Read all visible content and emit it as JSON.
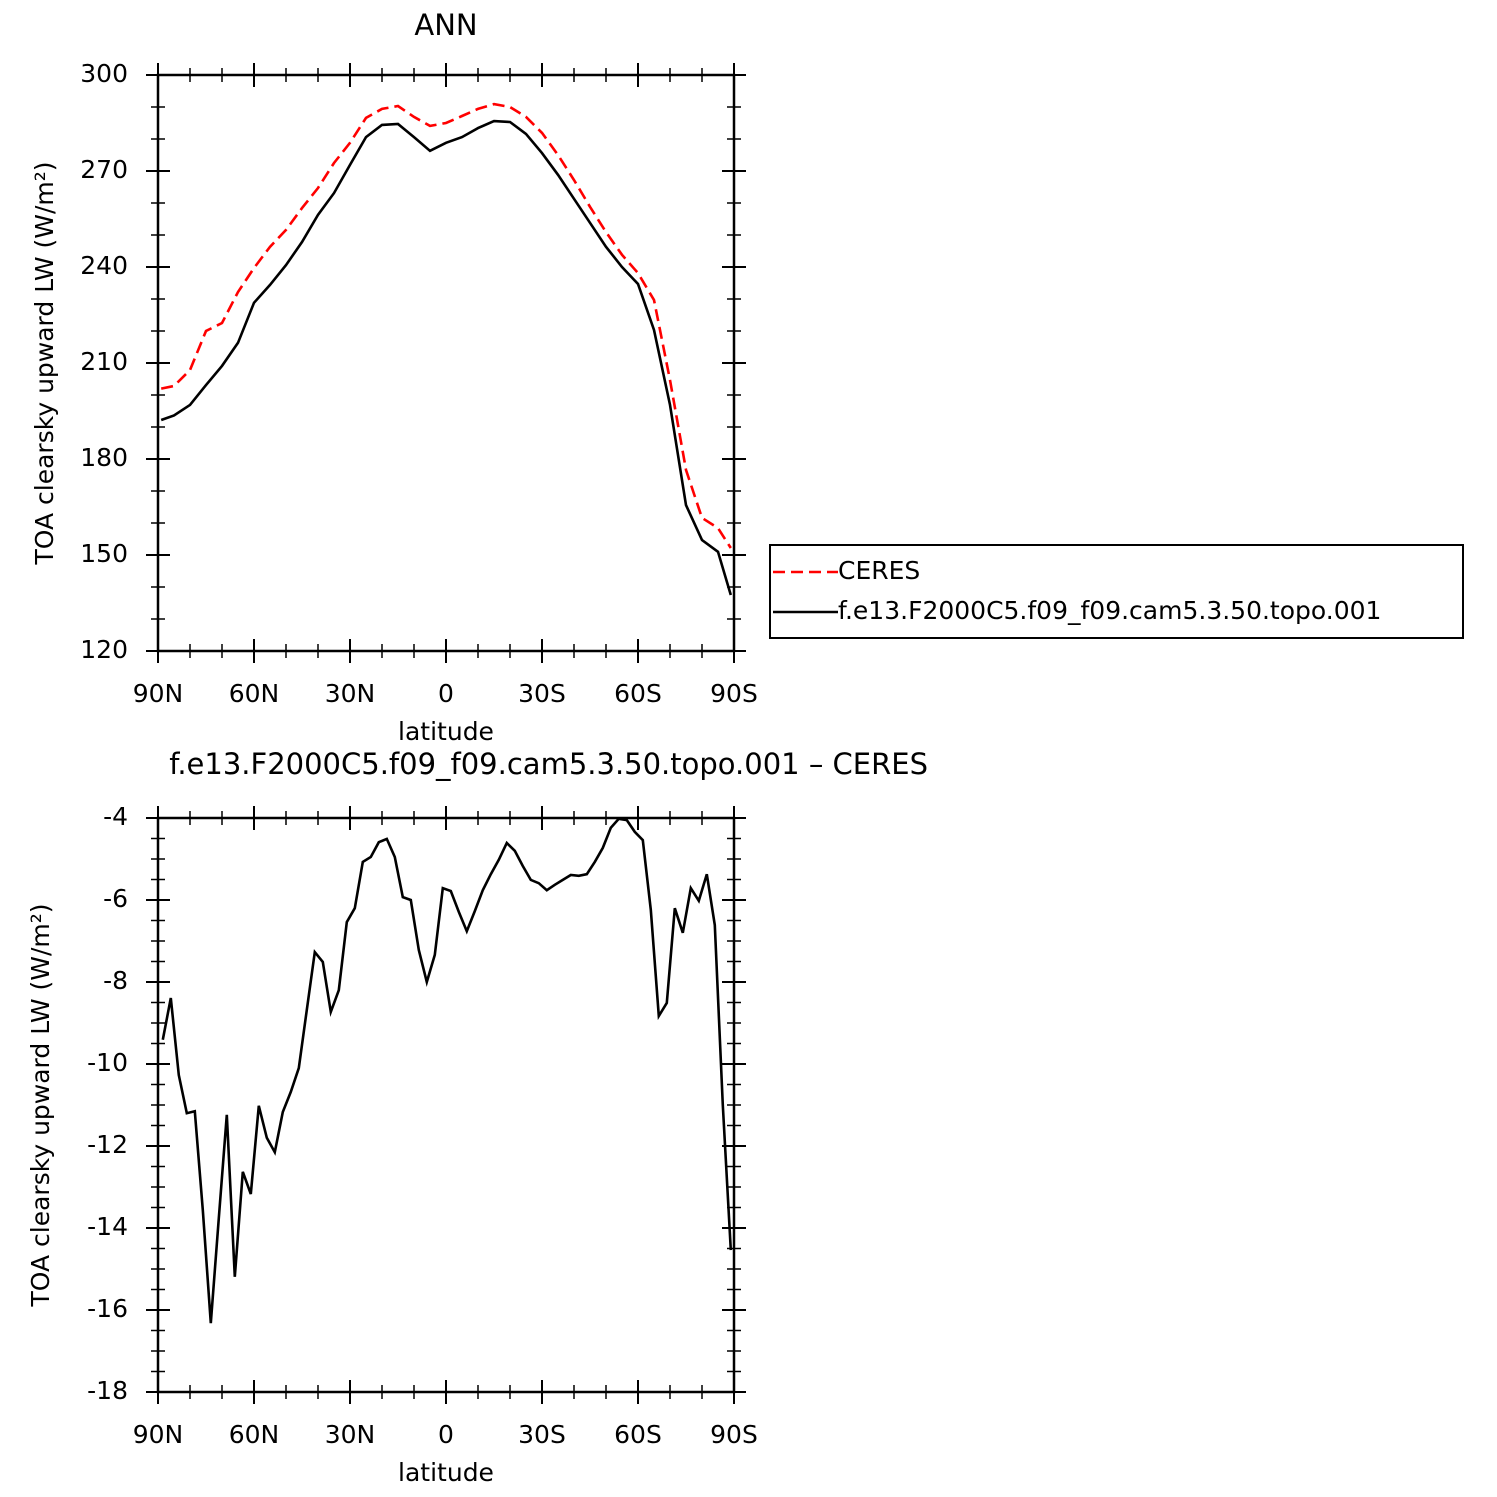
{
  "chart_data": [
    {
      "type": "line",
      "title": "ANN",
      "xlabel": "latitude",
      "ylabel": "TOA clearsky upward LW (W/m²)",
      "x": [
        89,
        85,
        80,
        75,
        70,
        65,
        60,
        55,
        50,
        45,
        40,
        35,
        30,
        25,
        20,
        15,
        10,
        5,
        0,
        -5,
        -10,
        -15,
        -20,
        -25,
        -30,
        -35,
        -40,
        -45,
        -50,
        -55,
        -60,
        -65,
        -70,
        -75,
        -80,
        -85,
        -89
      ],
      "series": [
        {
          "name": "CERES",
          "color": "#ff0000",
          "line_style": "dashed",
          "values": [
            202,
            202.8,
            207.8,
            220,
            222.5,
            232.2,
            239.7,
            246.3,
            251.6,
            258.4,
            264.7,
            272.5,
            278.8,
            286.6,
            289.4,
            290.3,
            286.9,
            284.1,
            285,
            287.2,
            289.4,
            290.9,
            290,
            286.9,
            281.9,
            275,
            267.2,
            258.8,
            250.9,
            243.8,
            238.1,
            229.7,
            204.7,
            176.6,
            161.6,
            158.4,
            152.2
          ]
        },
        {
          "name": "f.e13.F2000C5.f09_f09.cam5.3.50.topo.001",
          "color": "#000000",
          "line_style": "solid",
          "values": [
            192.2,
            193.6,
            196.9,
            203.1,
            209.1,
            216.3,
            228.8,
            234.4,
            240.6,
            247.8,
            256.3,
            263.1,
            271.9,
            280.6,
            284.4,
            284.7,
            280.6,
            276.3,
            278.8,
            280.6,
            283.4,
            285.6,
            285.3,
            281.6,
            275.6,
            268.8,
            261.3,
            253.8,
            246.3,
            240,
            234.7,
            220.3,
            196.9,
            165.6,
            154.7,
            151,
            137.5
          ]
        }
      ],
      "xlim": [
        90,
        -90
      ],
      "xticks": [
        {
          "value": 90,
          "label": "90N"
        },
        {
          "value": 60,
          "label": "60N"
        },
        {
          "value": 30,
          "label": "30N"
        },
        0,
        {
          "value": -30,
          "label": "30S"
        },
        {
          "value": -60,
          "label": "60S"
        },
        {
          "value": -90,
          "label": "90S"
        }
      ],
      "ylim": [
        120,
        300
      ],
      "yticks": [
        120,
        150,
        180,
        210,
        240,
        270,
        300
      ],
      "legend": "outside-right"
    },
    {
      "type": "line",
      "title": "f.e13.F2000C5.f09_f09.cam5.3.50.topo.001 – CERES",
      "xlabel": "latitude",
      "ylabel": "TOA clearsky upward LW (W/m²)",
      "x": [
        88.5,
        86,
        83.5,
        81,
        78.5,
        76,
        73.5,
        71,
        68.5,
        66,
        63.5,
        61,
        58.5,
        56,
        53.5,
        51,
        48.5,
        46,
        43.5,
        41,
        38.5,
        36,
        33.5,
        31,
        28.5,
        26,
        23.5,
        21,
        18.5,
        16,
        13.5,
        11,
        8.5,
        6,
        3.5,
        1,
        -1.5,
        -4,
        -6.5,
        -9,
        -11.5,
        -14,
        -16.5,
        -19,
        -21.5,
        -24,
        -26.5,
        -29,
        -31.5,
        -34,
        -36.5,
        -39,
        -41.5,
        -44,
        -46.5,
        -49,
        -51.5,
        -54,
        -56.5,
        -59,
        -61.5,
        -64,
        -66.5,
        -69,
        -71.5,
        -74,
        -76.5,
        -79,
        -81.5,
        -84,
        -86.5,
        -89
      ],
      "color": "#000000",
      "values": [
        -9.41,
        -8.39,
        -10.27,
        -11.2,
        -11.15,
        -13.56,
        -16.32,
        -13.76,
        -11.24,
        -15.19,
        -12.63,
        -13.17,
        -11.02,
        -11.8,
        -12.15,
        -11.17,
        -10.68,
        -10.1,
        -8.68,
        -7.27,
        -7.51,
        -8.73,
        -8.2,
        -6.54,
        -6.2,
        -5.07,
        -4.95,
        -4.59,
        -4.51,
        -4.95,
        -5.93,
        -6.0,
        -7.22,
        -8.0,
        -7.34,
        -5.71,
        -5.78,
        -6.29,
        -6.76,
        -6.27,
        -5.76,
        -5.37,
        -5.02,
        -4.61,
        -4.8,
        -5.17,
        -5.51,
        -5.59,
        -5.76,
        -5.63,
        -5.51,
        -5.39,
        -5.41,
        -5.37,
        -5.07,
        -4.73,
        -4.24,
        -4.02,
        -4.05,
        -4.34,
        -4.54,
        -6.24,
        -8.83,
        -8.51,
        -6.2,
        -6.8,
        -5.71,
        -6.02,
        -5.37,
        -6.61,
        -11.0,
        -14.54
      ],
      "xlim": [
        90,
        -90
      ],
      "xticks": [
        {
          "value": 90,
          "label": "90N"
        },
        {
          "value": 60,
          "label": "60N"
        },
        {
          "value": 30,
          "label": "30N"
        },
        0,
        {
          "value": -30,
          "label": "30S"
        },
        {
          "value": -60,
          "label": "60S"
        },
        {
          "value": -90,
          "label": "90S"
        }
      ],
      "ylim": [
        -18,
        -4
      ],
      "yticks": [
        -18,
        -16,
        -14,
        -12,
        -10,
        -8,
        -6,
        -4
      ]
    }
  ]
}
